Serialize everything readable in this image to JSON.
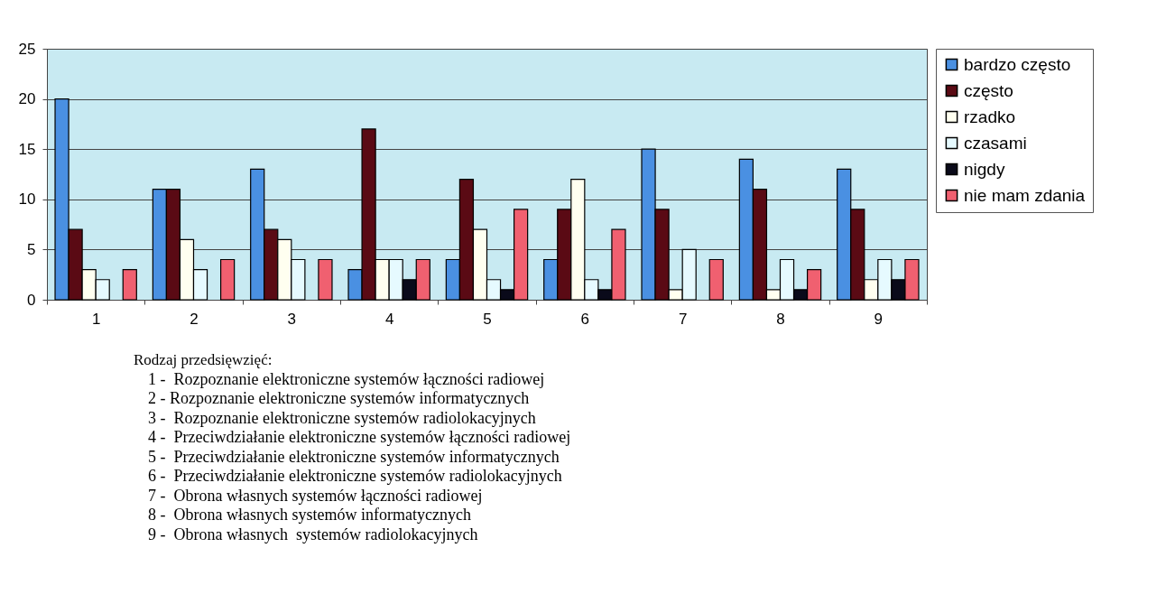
{
  "chart_data": {
    "type": "bar",
    "categories": [
      "1",
      "2",
      "3",
      "4",
      "5",
      "6",
      "7",
      "8",
      "9"
    ],
    "series": [
      {
        "name": "bardzo często",
        "color": "#4a90e2",
        "values": [
          20,
          11,
          13,
          3,
          4,
          4,
          15,
          14,
          13
        ]
      },
      {
        "name": "często",
        "color": "#5a0a14",
        "values": [
          7,
          11,
          7,
          17,
          12,
          9,
          9,
          11,
          9
        ]
      },
      {
        "name": "rzadko",
        "color": "#fffff0",
        "values": [
          3,
          6,
          6,
          4,
          7,
          12,
          1,
          1,
          2
        ]
      },
      {
        "name": "czasami",
        "color": "#e6faff",
        "values": [
          2,
          3,
          4,
          4,
          2,
          2,
          5,
          4,
          4
        ]
      },
      {
        "name": "nigdy",
        "color": "#0a0a1a",
        "values": [
          null,
          null,
          null,
          2,
          1,
          1,
          null,
          1,
          2
        ]
      },
      {
        "name": "nie mam zdania",
        "color": "#f06070",
        "values": [
          3,
          4,
          4,
          4,
          9,
          7,
          4,
          3,
          4
        ]
      }
    ],
    "ylim": [
      0,
      25
    ],
    "yticks": [
      0,
      5,
      10,
      15,
      20,
      25
    ],
    "grid": "y",
    "legend": "top right",
    "annotations": [
      "Rodzaj przedsięwzięć:",
      "1 -  Rozpoznanie elektroniczne systemów łączności radiowej",
      "2 - Rozpoznanie elektroniczne systemów informatycznych",
      "3 -  Rozpoznanie elektroniczne systemów radiolokacyjnych",
      "4 -  Przeciwdziałanie elektroniczne systemów łączności radiowej",
      "5 -  Przeciwdziałanie elektroniczne systemów informatycznych",
      "6 -  Przeciwdziałanie elektroniczne systemów radiolokacyjnych",
      "7 -  Obrona własnych systemów łączności radiowej",
      "8 -  Obrona własnych systemów informatycznych",
      "9 -  Obrona własnych  systemów radiolokacyjnych"
    ]
  }
}
